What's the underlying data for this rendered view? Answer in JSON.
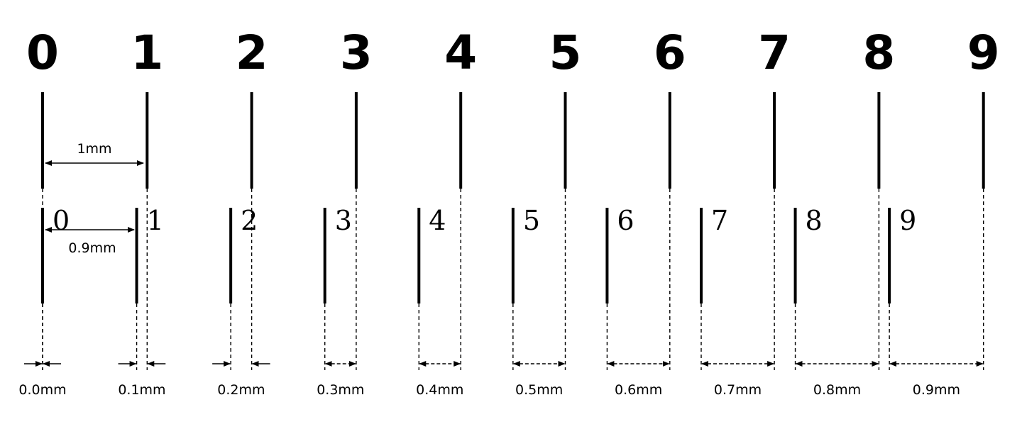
{
  "main_scale": {
    "labels": [
      "0",
      "1",
      "2",
      "3",
      "4",
      "5",
      "6",
      "7",
      "8",
      "9"
    ],
    "spacing_mm": 1
  },
  "vernier_scale": {
    "labels": [
      "0",
      "1",
      "2",
      "3",
      "4",
      "5",
      "6",
      "7",
      "8",
      "9"
    ],
    "spacing_mm": 0.9
  },
  "annotations": {
    "main_spacing": "1mm",
    "vernier_spacing": "0.9mm"
  },
  "differences": [
    "0.0mm",
    "0.1mm",
    "0.2mm",
    "0.3mm",
    "0.4mm",
    "0.5mm",
    "0.6mm",
    "0.7mm",
    "0.8mm",
    "0.9mm"
  ],
  "colors": {
    "ink": "#000000",
    "background": "#ffffff"
  }
}
